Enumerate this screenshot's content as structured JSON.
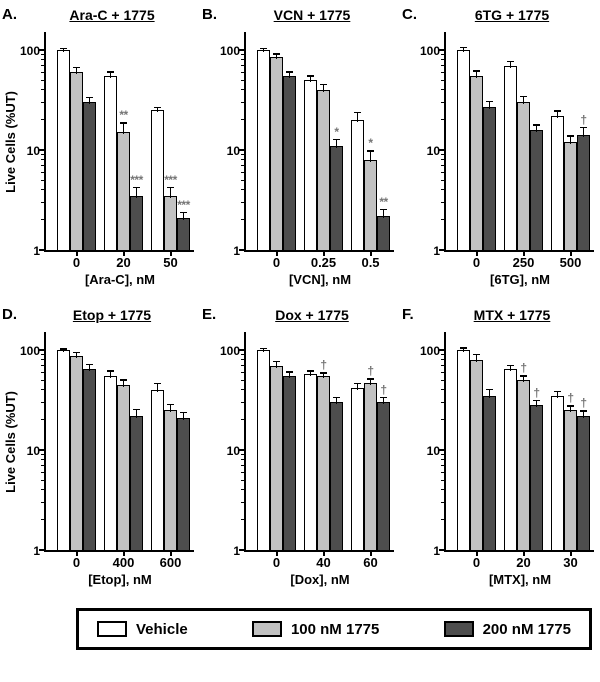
{
  "figure": {
    "background": "#ffffff",
    "y_axis_label": "Live Cells (%UT)",
    "y_ticks": [
      "100",
      "10",
      "1"
    ]
  },
  "legend": {
    "items": [
      {
        "label": "Vehicle",
        "color": "#ffffff"
      },
      {
        "label": "100 nM 1775",
        "color": "#c2c2c2"
      },
      {
        "label": "200 nM 1775",
        "color": "#4d4d4d"
      }
    ]
  },
  "chart_data": [
    {
      "type": "bar",
      "panel_letter": "A.",
      "title": "Ara-C + 1775",
      "xlabel": "[Ara-C], nM",
      "ylabel": "Live Cells (%UT)",
      "show_ylabel": true,
      "yscale": "log",
      "ylim": [
        1,
        100
      ],
      "categories": [
        "0",
        "20",
        "50"
      ],
      "series": [
        {
          "name": "Vehicle",
          "values": [
            100,
            55,
            25
          ],
          "errors": [
            5,
            6,
            2
          ]
        },
        {
          "name": "100 nM 1775",
          "values": [
            60,
            15,
            3.5
          ],
          "errors": [
            8,
            4,
            0.8
          ]
        },
        {
          "name": "200 nM 1775",
          "values": [
            30,
            3.5,
            2.1
          ],
          "errors": [
            4,
            0.8,
            0.3
          ]
        }
      ],
      "annotations": [
        {
          "group": 1,
          "series": 1,
          "text": "**"
        },
        {
          "group": 1,
          "series": 2,
          "text": "***"
        },
        {
          "group": 2,
          "series": 1,
          "text": "***"
        },
        {
          "group": 2,
          "series": 2,
          "text": "***"
        }
      ]
    },
    {
      "type": "bar",
      "panel_letter": "B.",
      "title": "VCN + 1775",
      "xlabel": "[VCN], nM",
      "ylabel": "Live Cells (%UT)",
      "show_ylabel": false,
      "yscale": "log",
      "ylim": [
        1,
        100
      ],
      "categories": [
        "0",
        "0.25",
        "0.5"
      ],
      "series": [
        {
          "name": "Vehicle",
          "values": [
            100,
            50,
            20
          ],
          "errors": [
            5,
            6,
            4
          ]
        },
        {
          "name": "100 nM 1775",
          "values": [
            85,
            40,
            8
          ],
          "errors": [
            8,
            6,
            2
          ]
        },
        {
          "name": "200 nM 1775",
          "values": [
            55,
            11,
            2.2
          ],
          "errors": [
            6,
            2,
            0.4
          ]
        }
      ],
      "annotations": [
        {
          "group": 1,
          "series": 2,
          "text": "*"
        },
        {
          "group": 2,
          "series": 1,
          "text": "*"
        },
        {
          "group": 2,
          "series": 2,
          "text": "**"
        }
      ]
    },
    {
      "type": "bar",
      "panel_letter": "C.",
      "title": "6TG + 1775",
      "xlabel": "[6TG], nM",
      "ylabel": "Live Cells (%UT)",
      "show_ylabel": false,
      "yscale": "log",
      "ylim": [
        1,
        100
      ],
      "categories": [
        "0",
        "250",
        "500"
      ],
      "series": [
        {
          "name": "Vehicle",
          "values": [
            100,
            70,
            22
          ],
          "errors": [
            8,
            8,
            3
          ]
        },
        {
          "name": "100 nM 1775",
          "values": [
            55,
            30,
            12
          ],
          "errors": [
            8,
            5,
            2
          ]
        },
        {
          "name": "200 nM 1775",
          "values": [
            27,
            16,
            14
          ],
          "errors": [
            4,
            2,
            3
          ]
        }
      ],
      "annotations": [
        {
          "group": 2,
          "series": 2,
          "text": "†"
        }
      ]
    },
    {
      "type": "bar",
      "panel_letter": "D.",
      "title": "Etop + 1775",
      "xlabel": "[Etop], nM",
      "ylabel": "Live Cells (%UT)",
      "show_ylabel": true,
      "yscale": "log",
      "ylim": [
        1,
        100
      ],
      "categories": [
        "0",
        "400",
        "600"
      ],
      "series": [
        {
          "name": "Vehicle",
          "values": [
            100,
            55,
            40
          ],
          "errors": [
            4,
            8,
            7
          ]
        },
        {
          "name": "100 nM 1775",
          "values": [
            88,
            45,
            25
          ],
          "errors": [
            8,
            6,
            4
          ]
        },
        {
          "name": "200 nM 1775",
          "values": [
            65,
            22,
            21
          ],
          "errors": [
            8,
            4,
            3
          ]
        }
      ],
      "annotations": []
    },
    {
      "type": "bar",
      "panel_letter": "E.",
      "title": "Dox + 1775",
      "xlabel": "[Dox], nM",
      "ylabel": "Live Cells (%UT)",
      "show_ylabel": false,
      "yscale": "log",
      "ylim": [
        1,
        100
      ],
      "categories": [
        "0",
        "40",
        "60"
      ],
      "series": [
        {
          "name": "Vehicle",
          "values": [
            100,
            58,
            42
          ],
          "errors": [
            5,
            5,
            5
          ]
        },
        {
          "name": "100 nM 1775",
          "values": [
            70,
            55,
            47
          ],
          "errors": [
            8,
            5,
            5
          ]
        },
        {
          "name": "200 nM 1775",
          "values": [
            55,
            30,
            30
          ],
          "errors": [
            6,
            4,
            4
          ]
        }
      ],
      "annotations": [
        {
          "group": 1,
          "series": 1,
          "text": "†"
        },
        {
          "group": 2,
          "series": 1,
          "text": "†"
        },
        {
          "group": 2,
          "series": 2,
          "text": "†"
        }
      ]
    },
    {
      "type": "bar",
      "panel_letter": "F.",
      "title": "MTX + 1775",
      "xlabel": "[MTX], nM",
      "ylabel": "Live Cells (%UT)",
      "show_ylabel": false,
      "yscale": "log",
      "ylim": [
        1,
        100
      ],
      "categories": [
        "0",
        "20",
        "30"
      ],
      "series": [
        {
          "name": "Vehicle",
          "values": [
            100,
            65,
            35
          ],
          "errors": [
            6,
            6,
            4
          ]
        },
        {
          "name": "100 nM 1775",
          "values": [
            80,
            50,
            25
          ],
          "errors": [
            12,
            6,
            3
          ]
        },
        {
          "name": "200 nM 1775",
          "values": [
            35,
            28,
            22
          ],
          "errors": [
            6,
            4,
            3
          ]
        }
      ],
      "annotations": [
        {
          "group": 1,
          "series": 1,
          "text": "†"
        },
        {
          "group": 1,
          "series": 2,
          "text": "†"
        },
        {
          "group": 2,
          "series": 1,
          "text": "†"
        },
        {
          "group": 2,
          "series": 2,
          "text": "†"
        }
      ]
    }
  ]
}
